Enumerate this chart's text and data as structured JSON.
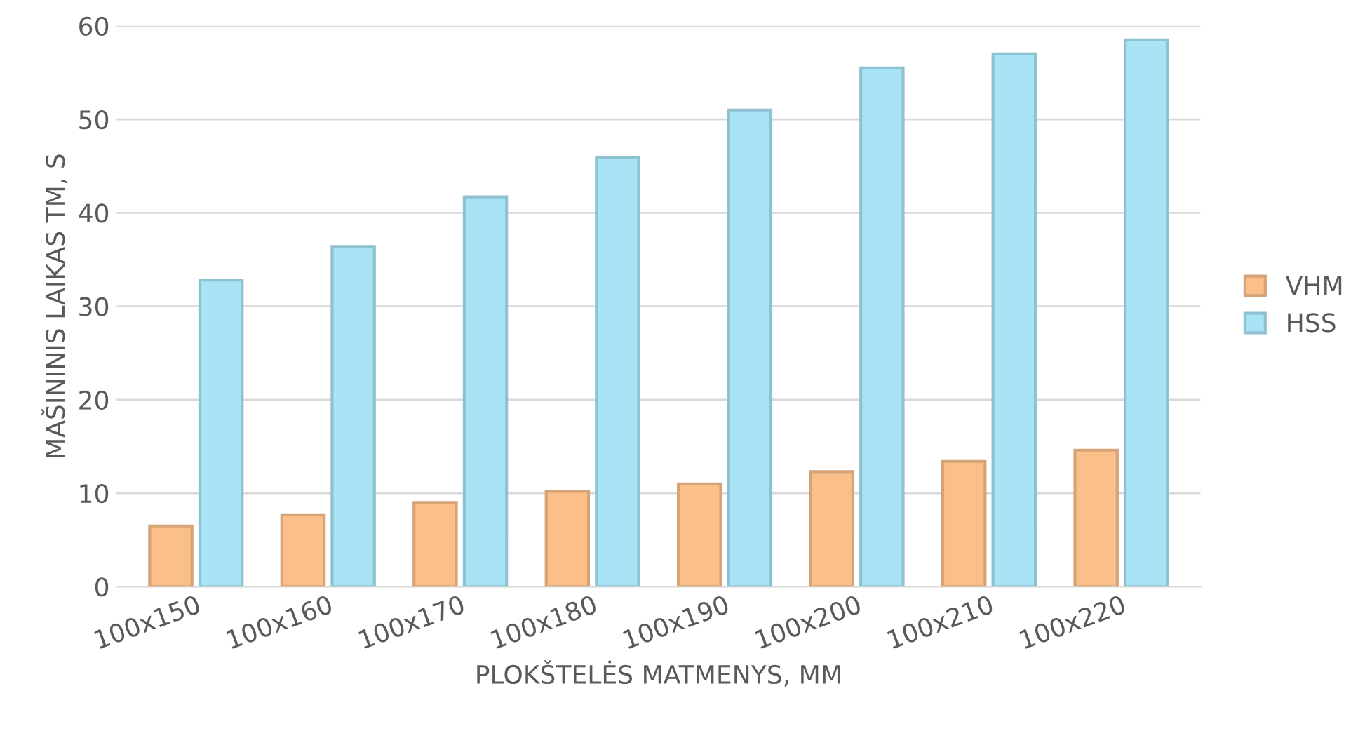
{
  "chart_data": {
    "type": "bar",
    "xlabel": "PLOKŠTELĖS MATMENYS, MM",
    "ylabel": "MAŠININIS LAIKAS TM, S",
    "categories": [
      "100x150",
      "100x160",
      "100x170",
      "100x180",
      "100x190",
      "100x200",
      "100x210",
      "100x220"
    ],
    "series": [
      {
        "name": "VHM",
        "color": "#fbc08a",
        "values": [
          6.5,
          7.7,
          9.0,
          10.2,
          11.0,
          12.3,
          13.4,
          14.6
        ]
      },
      {
        "name": "HSS",
        "color": "#a8e4f5",
        "values": [
          32.8,
          36.4,
          41.7,
          45.9,
          51.0,
          55.5,
          57.0,
          58.5
        ]
      }
    ],
    "ylim": [
      0,
      60
    ],
    "yticks": [
      0,
      10,
      20,
      30,
      40,
      50,
      60
    ],
    "grid": "y",
    "legend": "right"
  }
}
